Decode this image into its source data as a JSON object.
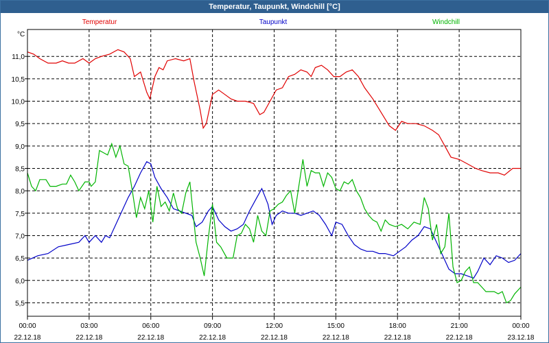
{
  "window": {
    "title": "Temperatur, Taupunkt, Windchill [°C]"
  },
  "chart_data": {
    "type": "line",
    "title": "Temperatur, Taupunkt, Windchill [°C]",
    "ylabel": "°C",
    "xlabel": "",
    "ylim": [
      5.2,
      11.6
    ],
    "xlim": [
      0,
      24
    ],
    "grid": true,
    "yticks": [
      "5,5",
      "6,0",
      "6,5",
      "7,0",
      "7,5",
      "8,0",
      "8,5",
      "9,0",
      "9,5",
      "10,0",
      "10,5",
      "11,0"
    ],
    "ytick_values": [
      5.5,
      6.0,
      6.5,
      7.0,
      7.5,
      8.0,
      8.5,
      9.0,
      9.5,
      10.0,
      10.5,
      11.0
    ],
    "xticks": [
      {
        "t": 0,
        "time": "00:00",
        "date": "22.12.18"
      },
      {
        "t": 3,
        "time": "03:00",
        "date": "22.12.18"
      },
      {
        "t": 6,
        "time": "06:00",
        "date": "22.12.18"
      },
      {
        "t": 9,
        "time": "09:00",
        "date": "22.12.18"
      },
      {
        "t": 12,
        "time": "12:00",
        "date": "22.12.18"
      },
      {
        "t": 15,
        "time": "15:00",
        "date": "22.12.18"
      },
      {
        "t": 18,
        "time": "18:00",
        "date": "22.12.18"
      },
      {
        "t": 21,
        "time": "21:00",
        "date": "22.12.18"
      },
      {
        "t": 24,
        "time": "00:00",
        "date": "23.12.18"
      }
    ],
    "series": [
      {
        "name": "Temperatur",
        "color": "#e00000",
        "points": [
          [
            0,
            11.1
          ],
          [
            0.3,
            11.05
          ],
          [
            0.6,
            10.95
          ],
          [
            1.0,
            10.85
          ],
          [
            1.4,
            10.85
          ],
          [
            1.7,
            10.9
          ],
          [
            2.0,
            10.85
          ],
          [
            2.3,
            10.85
          ],
          [
            2.7,
            10.95
          ],
          [
            3.0,
            10.85
          ],
          [
            3.3,
            10.95
          ],
          [
            3.6,
            11.0
          ],
          [
            4.0,
            11.05
          ],
          [
            4.4,
            11.15
          ],
          [
            4.7,
            11.1
          ],
          [
            5.0,
            10.95
          ],
          [
            5.2,
            10.55
          ],
          [
            5.5,
            10.65
          ],
          [
            5.8,
            10.2
          ],
          [
            5.95,
            10.05
          ],
          [
            6.2,
            10.55
          ],
          [
            6.4,
            10.75
          ],
          [
            6.6,
            10.7
          ],
          [
            6.8,
            10.9
          ],
          [
            7.2,
            10.95
          ],
          [
            7.6,
            10.9
          ],
          [
            7.9,
            10.95
          ],
          [
            8.1,
            10.45
          ],
          [
            8.4,
            9.8
          ],
          [
            8.55,
            9.4
          ],
          [
            8.7,
            9.5
          ],
          [
            9.0,
            10.15
          ],
          [
            9.3,
            10.25
          ],
          [
            9.6,
            10.15
          ],
          [
            9.9,
            10.05
          ],
          [
            10.2,
            10.0
          ],
          [
            10.6,
            10.0
          ],
          [
            11.0,
            9.95
          ],
          [
            11.3,
            9.7
          ],
          [
            11.5,
            9.75
          ],
          [
            11.8,
            10.0
          ],
          [
            12.1,
            10.25
          ],
          [
            12.4,
            10.3
          ],
          [
            12.7,
            10.55
          ],
          [
            13.0,
            10.6
          ],
          [
            13.3,
            10.7
          ],
          [
            13.6,
            10.65
          ],
          [
            13.8,
            10.55
          ],
          [
            14.0,
            10.75
          ],
          [
            14.3,
            10.8
          ],
          [
            14.6,
            10.7
          ],
          [
            14.9,
            10.55
          ],
          [
            15.2,
            10.55
          ],
          [
            15.5,
            10.65
          ],
          [
            15.8,
            10.7
          ],
          [
            16.1,
            10.55
          ],
          [
            16.4,
            10.3
          ],
          [
            16.8,
            10.05
          ],
          [
            17.2,
            9.75
          ],
          [
            17.6,
            9.45
          ],
          [
            17.9,
            9.35
          ],
          [
            18.2,
            9.55
          ],
          [
            18.5,
            9.5
          ],
          [
            18.9,
            9.5
          ],
          [
            19.3,
            9.45
          ],
          [
            19.7,
            9.35
          ],
          [
            20.0,
            9.25
          ],
          [
            20.3,
            9.0
          ],
          [
            20.6,
            8.75
          ],
          [
            21.0,
            8.7
          ],
          [
            21.4,
            8.6
          ],
          [
            21.8,
            8.5
          ],
          [
            22.1,
            8.45
          ],
          [
            22.5,
            8.4
          ],
          [
            22.9,
            8.4
          ],
          [
            23.2,
            8.35
          ],
          [
            23.6,
            8.5
          ],
          [
            24.0,
            8.5
          ]
        ]
      },
      {
        "name": "Taupunkt",
        "color": "#0000c8",
        "points": [
          [
            0,
            6.45
          ],
          [
            0.5,
            6.55
          ],
          [
            1.0,
            6.6
          ],
          [
            1.5,
            6.75
          ],
          [
            2.0,
            6.8
          ],
          [
            2.5,
            6.85
          ],
          [
            2.8,
            7.0
          ],
          [
            3.0,
            6.85
          ],
          [
            3.3,
            7.0
          ],
          [
            3.6,
            6.85
          ],
          [
            3.8,
            7.0
          ],
          [
            4.0,
            6.95
          ],
          [
            4.3,
            7.25
          ],
          [
            4.6,
            7.55
          ],
          [
            4.9,
            7.85
          ],
          [
            5.2,
            8.1
          ],
          [
            5.5,
            8.4
          ],
          [
            5.8,
            8.65
          ],
          [
            6.0,
            8.6
          ],
          [
            6.2,
            8.3
          ],
          [
            6.5,
            8.05
          ],
          [
            6.8,
            7.85
          ],
          [
            7.1,
            7.6
          ],
          [
            7.4,
            7.55
          ],
          [
            7.7,
            7.5
          ],
          [
            8.0,
            7.45
          ],
          [
            8.2,
            7.2
          ],
          [
            8.5,
            7.3
          ],
          [
            8.8,
            7.55
          ],
          [
            9.0,
            7.65
          ],
          [
            9.3,
            7.35
          ],
          [
            9.6,
            7.2
          ],
          [
            9.9,
            7.1
          ],
          [
            10.2,
            7.15
          ],
          [
            10.5,
            7.25
          ],
          [
            10.8,
            7.55
          ],
          [
            11.1,
            7.8
          ],
          [
            11.4,
            8.05
          ],
          [
            11.7,
            7.7
          ],
          [
            11.9,
            7.25
          ],
          [
            12.1,
            7.45
          ],
          [
            12.4,
            7.55
          ],
          [
            12.7,
            7.5
          ],
          [
            13.0,
            7.5
          ],
          [
            13.3,
            7.45
          ],
          [
            13.6,
            7.5
          ],
          [
            13.9,
            7.55
          ],
          [
            14.2,
            7.45
          ],
          [
            14.5,
            7.25
          ],
          [
            14.8,
            7.0
          ],
          [
            15.0,
            7.3
          ],
          [
            15.3,
            7.25
          ],
          [
            15.6,
            7.0
          ],
          [
            15.9,
            6.8
          ],
          [
            16.2,
            6.7
          ],
          [
            16.5,
            6.65
          ],
          [
            16.8,
            6.65
          ],
          [
            17.1,
            6.6
          ],
          [
            17.4,
            6.6
          ],
          [
            17.8,
            6.55
          ],
          [
            18.1,
            6.65
          ],
          [
            18.4,
            6.75
          ],
          [
            18.7,
            6.9
          ],
          [
            19.0,
            7.0
          ],
          [
            19.3,
            7.2
          ],
          [
            19.6,
            7.15
          ],
          [
            19.9,
            6.85
          ],
          [
            20.2,
            6.55
          ],
          [
            20.5,
            6.25
          ],
          [
            20.8,
            6.15
          ],
          [
            21.1,
            6.15
          ],
          [
            21.4,
            6.1
          ],
          [
            21.7,
            6.05
          ],
          [
            21.9,
            6.2
          ],
          [
            22.2,
            6.5
          ],
          [
            22.5,
            6.35
          ],
          [
            22.8,
            6.55
          ],
          [
            23.1,
            6.5
          ],
          [
            23.4,
            6.4
          ],
          [
            23.7,
            6.45
          ],
          [
            24.0,
            6.6
          ]
        ]
      },
      {
        "name": "Windchill",
        "color": "#00b400",
        "points": [
          [
            0,
            8.4
          ],
          [
            0.2,
            8.1
          ],
          [
            0.4,
            8.0
          ],
          [
            0.6,
            8.25
          ],
          [
            0.9,
            8.25
          ],
          [
            1.1,
            8.1
          ],
          [
            1.4,
            8.1
          ],
          [
            1.7,
            8.15
          ],
          [
            1.9,
            8.15
          ],
          [
            2.1,
            8.35
          ],
          [
            2.3,
            8.2
          ],
          [
            2.5,
            8.0
          ],
          [
            2.8,
            8.2
          ],
          [
            3.0,
            8.2
          ],
          [
            3.1,
            8.1
          ],
          [
            3.3,
            8.2
          ],
          [
            3.5,
            8.9
          ],
          [
            3.7,
            8.85
          ],
          [
            3.9,
            8.8
          ],
          [
            4.1,
            9.05
          ],
          [
            4.3,
            8.75
          ],
          [
            4.5,
            9.0
          ],
          [
            4.7,
            8.6
          ],
          [
            4.9,
            8.55
          ],
          [
            5.1,
            8.0
          ],
          [
            5.3,
            7.4
          ],
          [
            5.5,
            7.85
          ],
          [
            5.7,
            7.6
          ],
          [
            5.9,
            8.0
          ],
          [
            6.1,
            7.3
          ],
          [
            6.3,
            8.1
          ],
          [
            6.5,
            7.65
          ],
          [
            6.7,
            7.75
          ],
          [
            6.9,
            7.55
          ],
          [
            7.1,
            7.95
          ],
          [
            7.3,
            7.6
          ],
          [
            7.5,
            7.5
          ],
          [
            7.7,
            7.95
          ],
          [
            7.9,
            8.2
          ],
          [
            8.0,
            7.75
          ],
          [
            8.2,
            6.85
          ],
          [
            8.4,
            6.5
          ],
          [
            8.6,
            6.1
          ],
          [
            8.8,
            6.95
          ],
          [
            9.0,
            7.7
          ],
          [
            9.2,
            6.85
          ],
          [
            9.4,
            6.75
          ],
          [
            9.7,
            6.5
          ],
          [
            10.0,
            6.5
          ],
          [
            10.2,
            7.0
          ],
          [
            10.4,
            7.05
          ],
          [
            10.6,
            7.25
          ],
          [
            10.8,
            7.15
          ],
          [
            11.0,
            6.85
          ],
          [
            11.2,
            7.45
          ],
          [
            11.4,
            7.1
          ],
          [
            11.6,
            7.0
          ],
          [
            11.8,
            7.55
          ],
          [
            12.0,
            7.6
          ],
          [
            12.2,
            7.7
          ],
          [
            12.4,
            7.75
          ],
          [
            12.6,
            7.9
          ],
          [
            12.8,
            8.0
          ],
          [
            13.0,
            7.5
          ],
          [
            13.2,
            8.1
          ],
          [
            13.4,
            8.7
          ],
          [
            13.6,
            8.1
          ],
          [
            13.8,
            8.45
          ],
          [
            14.0,
            8.4
          ],
          [
            14.2,
            8.4
          ],
          [
            14.4,
            8.1
          ],
          [
            14.6,
            8.4
          ],
          [
            14.8,
            8.3
          ],
          [
            15.0,
            8.05
          ],
          [
            15.2,
            8.0
          ],
          [
            15.4,
            8.2
          ],
          [
            15.6,
            8.15
          ],
          [
            15.8,
            8.25
          ],
          [
            16.0,
            8.0
          ],
          [
            16.2,
            7.85
          ],
          [
            16.4,
            7.6
          ],
          [
            16.6,
            7.45
          ],
          [
            16.8,
            7.35
          ],
          [
            17.0,
            7.3
          ],
          [
            17.2,
            7.1
          ],
          [
            17.4,
            7.35
          ],
          [
            17.6,
            7.25
          ],
          [
            17.9,
            7.2
          ],
          [
            18.2,
            7.25
          ],
          [
            18.5,
            7.15
          ],
          [
            18.8,
            7.3
          ],
          [
            19.1,
            7.25
          ],
          [
            19.3,
            7.85
          ],
          [
            19.5,
            7.6
          ],
          [
            19.7,
            6.9
          ],
          [
            19.9,
            7.25
          ],
          [
            20.1,
            6.6
          ],
          [
            20.3,
            6.75
          ],
          [
            20.5,
            7.5
          ],
          [
            20.7,
            6.3
          ],
          [
            20.9,
            5.95
          ],
          [
            21.1,
            6.0
          ],
          [
            21.3,
            6.2
          ],
          [
            21.5,
            6.3
          ],
          [
            21.7,
            5.95
          ],
          [
            21.9,
            5.95
          ],
          [
            22.1,
            5.85
          ],
          [
            22.3,
            5.75
          ],
          [
            22.5,
            5.75
          ],
          [
            22.7,
            5.75
          ],
          [
            22.9,
            5.7
          ],
          [
            23.1,
            5.75
          ],
          [
            23.3,
            5.5
          ],
          [
            23.5,
            5.55
          ],
          [
            23.7,
            5.7
          ],
          [
            24.0,
            5.85
          ]
        ]
      }
    ]
  }
}
